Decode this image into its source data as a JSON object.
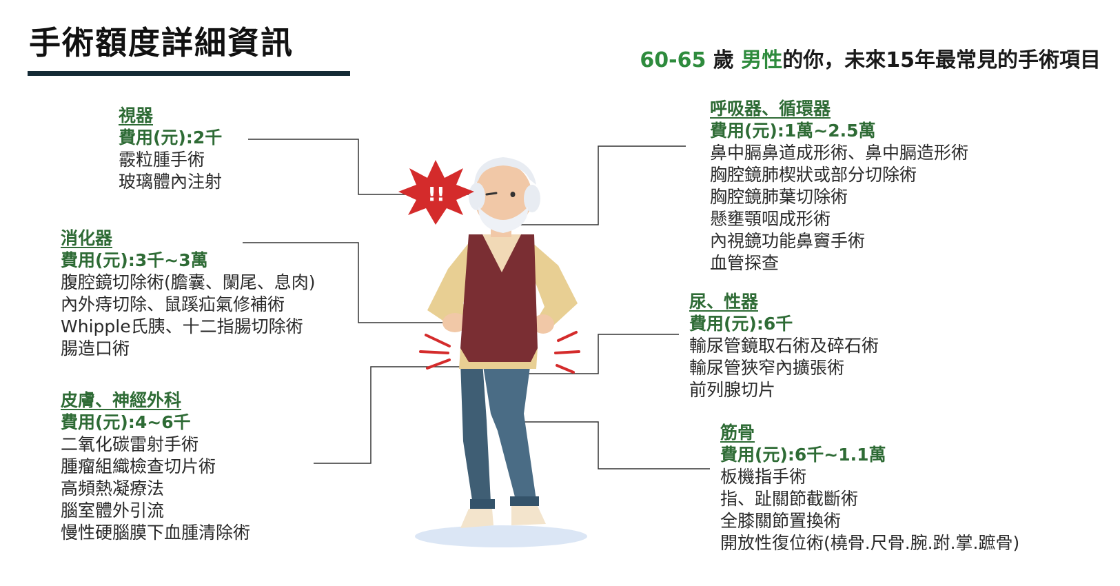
{
  "page": {
    "title": "手術額度詳細資訊",
    "subtitle": {
      "age": "60-65",
      "age_unit": " 歲 ",
      "gender": "男性",
      "rest": "的你，未來15年最常見的手術項目"
    }
  },
  "fee_label": "費用(元):",
  "categories": [
    {
      "name": "視器",
      "fee": "2千",
      "items": [
        "霰粒腫手術",
        "玻璃體內注射"
      ]
    },
    {
      "name": "消化器",
      "fee": "3千~3萬",
      "items": [
        "腹腔鏡切除術(膽囊、闌尾、息肉)",
        "內外痔切除、鼠蹊疝氣修補術",
        "Whipple氏胰、十二指腸切除術",
        "腸造口術"
      ]
    },
    {
      "name": "皮膚、神經外科",
      "fee": "4~6千",
      "items": [
        "二氧化碳雷射手術",
        "腫瘤組織檢查切片術",
        "高頻熱凝療法",
        "腦室體外引流",
        "慢性硬腦膜下血腫清除術"
      ]
    },
    {
      "name": "呼吸器、循環器",
      "fee": "1萬~2.5萬",
      "items": [
        "鼻中膈鼻道成形術、鼻中膈造形術",
        "胸腔鏡肺楔狀或部分切除術",
        "胸腔鏡肺葉切除術",
        "懸壅顎咽成形術",
        "內視鏡功能鼻竇手術",
        "血管探查"
      ]
    },
    {
      "name": "尿、性器",
      "fee": "6千",
      "items": [
        "輸尿管鏡取石術及碎石術",
        "輸尿管狹窄內擴張術",
        "前列腺切片"
      ]
    },
    {
      "name": "筋骨",
      "fee": "6千~1.1萬",
      "items": [
        "板機指手術",
        "指、趾關節截斷術",
        "全膝關節置換術",
        "開放性復位術(橈骨.尺骨.腕.跗.掌.蹠骨)"
      ]
    }
  ],
  "illustration": {
    "alert_symbol": "!!",
    "icons": [
      "elderly-man-illustration",
      "pain-burst-icon",
      "pain-mark-icon"
    ]
  },
  "colors": {
    "accent_green": "#2e8b3d",
    "heading_green": "#2e6b35",
    "title_bar": "#142a35",
    "alert_red": "#d42b2b",
    "vest": "#7a2e33",
    "jeans": "#3f5e74"
  }
}
